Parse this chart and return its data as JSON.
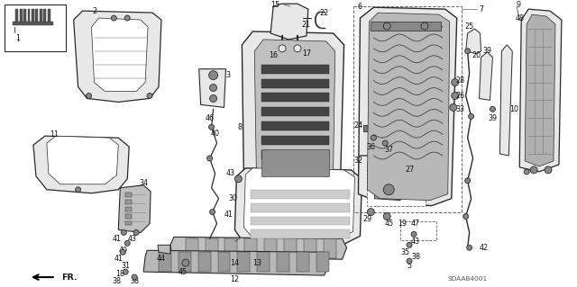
{
  "bg_color": "#ffffff",
  "line_color": "#2a2a2a",
  "text_color": "#111111",
  "gray_fill": "#d8d8d8",
  "light_gray": "#e8e8e8",
  "dark_gray": "#888888",
  "diagram_code": "SDAAB4001",
  "fr_label": "FR.",
  "label_fs": 5.8,
  "title_fs": 7.0
}
